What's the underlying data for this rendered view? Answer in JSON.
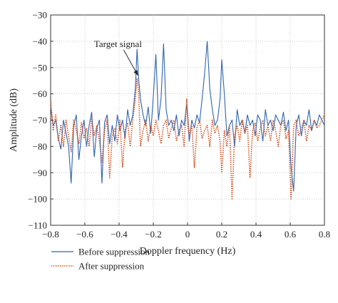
{
  "chart_data": {
    "type": "line",
    "title": "",
    "xlabel": "Doppler frequency (Hz)",
    "ylabel": "Amplitude (dB)",
    "xlim": [
      -0.8,
      0.8
    ],
    "ylim": [
      -110,
      -30
    ],
    "xticks": [
      -0.8,
      -0.6,
      -0.4,
      -0.2,
      0,
      0.2,
      0.4,
      0.6,
      0.8
    ],
    "xtick_labels": [
      "−0.8",
      "−0.6",
      "−0.4",
      "−0.2",
      "0",
      "0.2",
      "0.4",
      "0.6",
      "0.8"
    ],
    "yticks": [
      -110,
      -100,
      -90,
      -80,
      -70,
      -60,
      -50,
      -40,
      -30
    ],
    "ytick_labels": [
      "−110",
      "−100",
      "−90",
      "−80",
      "−70",
      "−60",
      "−50",
      "−40",
      "−30"
    ],
    "grid": true,
    "legend_position": "bottom-left",
    "annotation": {
      "text": "Target signal",
      "x": -0.29,
      "y": -53
    },
    "series": [
      {
        "name": "Before suppression",
        "color": "#2e64b3",
        "style": "solid",
        "x": [
          -0.8,
          -0.785,
          -0.77,
          -0.755,
          -0.74,
          -0.725,
          -0.71,
          -0.695,
          -0.68,
          -0.665,
          -0.65,
          -0.635,
          -0.62,
          -0.605,
          -0.59,
          -0.575,
          -0.56,
          -0.545,
          -0.53,
          -0.515,
          -0.5,
          -0.485,
          -0.47,
          -0.455,
          -0.44,
          -0.425,
          -0.41,
          -0.395,
          -0.38,
          -0.365,
          -0.35,
          -0.335,
          -0.32,
          -0.305,
          -0.295,
          -0.285,
          -0.275,
          -0.26,
          -0.245,
          -0.23,
          -0.215,
          -0.2,
          -0.185,
          -0.17,
          -0.155,
          -0.14,
          -0.125,
          -0.11,
          -0.095,
          -0.08,
          -0.065,
          -0.05,
          -0.035,
          -0.02,
          -0.005,
          0.01,
          0.025,
          0.04,
          0.055,
          0.07,
          0.085,
          0.1,
          0.115,
          0.13,
          0.145,
          0.16,
          0.175,
          0.19,
          0.2,
          0.215,
          0.23,
          0.245,
          0.26,
          0.275,
          0.29,
          0.305,
          0.32,
          0.335,
          0.35,
          0.365,
          0.38,
          0.395,
          0.41,
          0.425,
          0.44,
          0.455,
          0.47,
          0.485,
          0.5,
          0.515,
          0.53,
          0.545,
          0.56,
          0.575,
          0.59,
          0.605,
          0.62,
          0.635,
          0.65,
          0.665,
          0.68,
          0.695,
          0.71,
          0.725,
          0.74,
          0.755,
          0.77,
          0.785,
          0.8
        ],
        "y": [
          -65,
          -72,
          -70,
          -77,
          -81,
          -70,
          -75,
          -80,
          -94,
          -72,
          -68,
          -85,
          -76,
          -70,
          -80,
          -72,
          -67,
          -84,
          -73,
          -70,
          -94,
          -71,
          -68,
          -79,
          -72,
          -78,
          -68,
          -74,
          -70,
          -77,
          -66,
          -72,
          -68,
          -58,
          -43,
          -55,
          -62,
          -68,
          -72,
          -65,
          -75,
          -61,
          -45,
          -70,
          -62,
          -41,
          -66,
          -72,
          -70,
          -74,
          -68,
          -76,
          -70,
          -72,
          -64,
          -78,
          -70,
          -73,
          -68,
          -71,
          -62,
          -52,
          -40,
          -58,
          -66,
          -72,
          -70,
          -62,
          -47,
          -60,
          -76,
          -72,
          -70,
          -80,
          -66,
          -72,
          -70,
          -75,
          -68,
          -72,
          -70,
          -76,
          -68,
          -70,
          -78,
          -66,
          -72,
          -70,
          -74,
          -68,
          -70,
          -72,
          -67,
          -74,
          -70,
          -88,
          -97,
          -72,
          -68,
          -76,
          -70,
          -72,
          -66,
          -74,
          -70,
          -72,
          -68,
          -70,
          -72
        ]
      },
      {
        "name": "After suppression",
        "color": "#d4521f",
        "style": "dotted",
        "x": [
          -0.8,
          -0.785,
          -0.77,
          -0.755,
          -0.74,
          -0.725,
          -0.71,
          -0.695,
          -0.68,
          -0.665,
          -0.65,
          -0.635,
          -0.62,
          -0.605,
          -0.59,
          -0.575,
          -0.56,
          -0.545,
          -0.53,
          -0.515,
          -0.5,
          -0.485,
          -0.47,
          -0.455,
          -0.44,
          -0.425,
          -0.41,
          -0.395,
          -0.38,
          -0.365,
          -0.35,
          -0.335,
          -0.32,
          -0.305,
          -0.295,
          -0.285,
          -0.275,
          -0.26,
          -0.245,
          -0.23,
          -0.215,
          -0.2,
          -0.185,
          -0.17,
          -0.155,
          -0.14,
          -0.125,
          -0.11,
          -0.095,
          -0.08,
          -0.065,
          -0.05,
          -0.035,
          -0.02,
          -0.005,
          0.01,
          0.025,
          0.04,
          0.055,
          0.07,
          0.085,
          0.1,
          0.115,
          0.13,
          0.145,
          0.16,
          0.175,
          0.19,
          0.2,
          0.215,
          0.23,
          0.245,
          0.26,
          0.275,
          0.29,
          0.305,
          0.32,
          0.335,
          0.35,
          0.365,
          0.38,
          0.395,
          0.41,
          0.425,
          0.44,
          0.455,
          0.47,
          0.485,
          0.5,
          0.515,
          0.53,
          0.545,
          0.56,
          0.575,
          0.59,
          0.605,
          0.62,
          0.635,
          0.65,
          0.665,
          0.68,
          0.695,
          0.71,
          0.725,
          0.74,
          0.755,
          0.77,
          0.785,
          0.8
        ],
        "y": [
          -62,
          -74,
          -68,
          -78,
          -72,
          -80,
          -70,
          -76,
          -82,
          -70,
          -74,
          -79,
          -71,
          -77,
          -73,
          -80,
          -69,
          -76,
          -72,
          -78,
          -86,
          -74,
          -70,
          -92,
          -76,
          -73,
          -79,
          -70,
          -88,
          -74,
          -71,
          -80,
          -70,
          -62,
          -54,
          -60,
          -80,
          -74,
          -70,
          -78,
          -72,
          -76,
          -70,
          -74,
          -79,
          -72,
          -70,
          -77,
          -73,
          -70,
          -78,
          -74,
          -72,
          -80,
          -62,
          -76,
          -72,
          -88,
          -73,
          -70,
          -77,
          -74,
          -72,
          -80,
          -70,
          -75,
          -72,
          -78,
          -90,
          -74,
          -80,
          -72,
          -100,
          -76,
          -72,
          -78,
          -70,
          -75,
          -72,
          -92,
          -74,
          -71,
          -78,
          -73,
          -70,
          -76,
          -72,
          -78,
          -70,
          -74,
          -80,
          -72,
          -70,
          -77,
          -74,
          -100,
          -72,
          -70,
          -76,
          -73,
          -70,
          -78,
          -72,
          -74,
          -70,
          -73,
          -72,
          -70,
          -68
        ]
      }
    ]
  }
}
